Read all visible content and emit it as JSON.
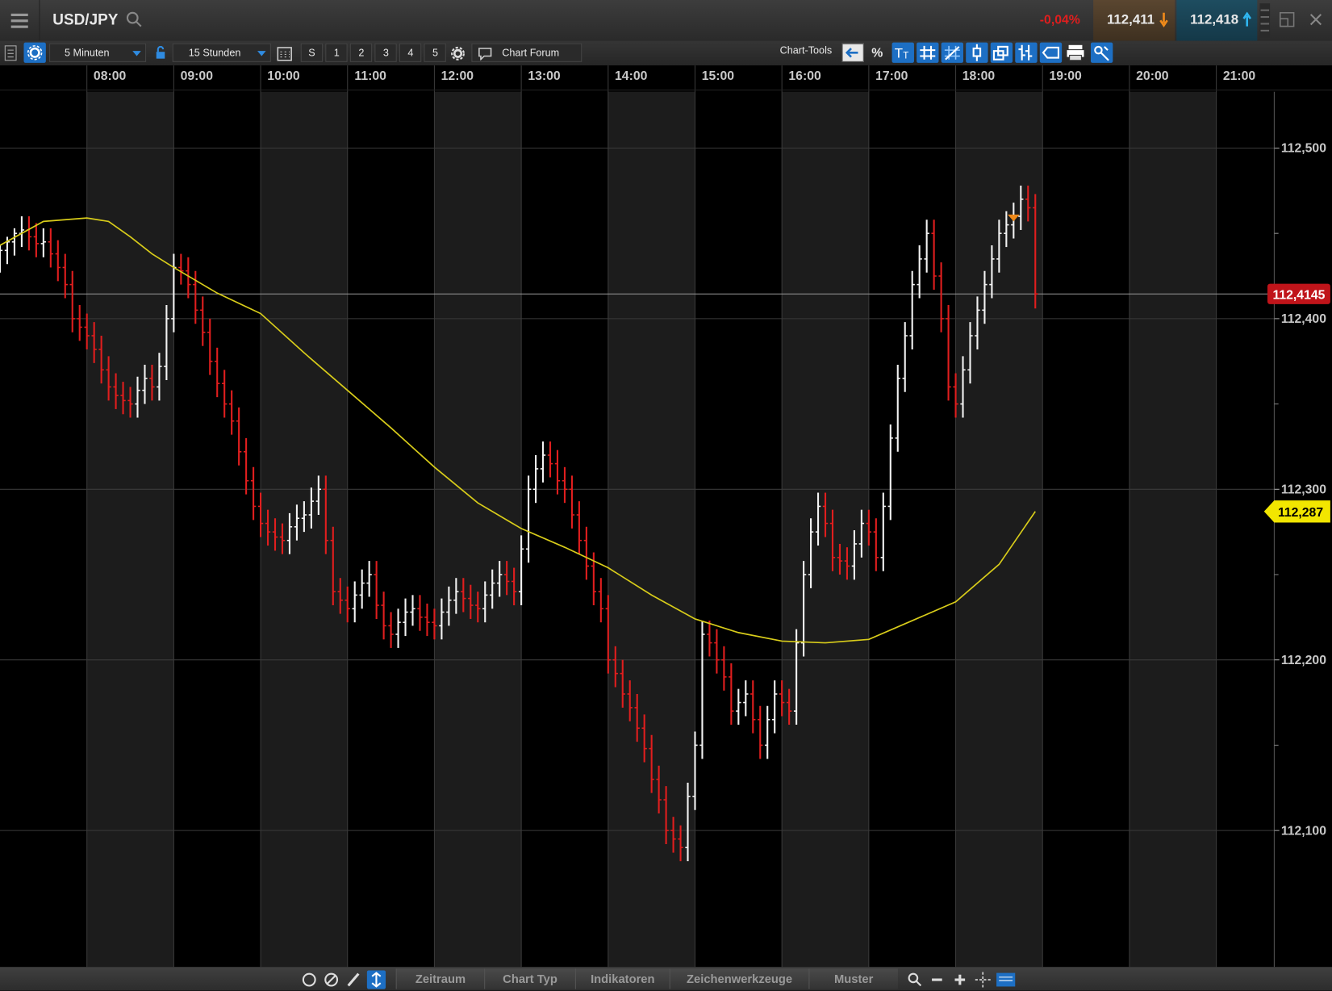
{
  "header": {
    "symbol": "USD/JPY",
    "change": "-0,04%",
    "sell": "112,411",
    "buy": "112,418"
  },
  "toolbar": {
    "interval": "5 Minuten",
    "range": "15 Stunden",
    "buttons": [
      "S",
      "1",
      "2",
      "3",
      "4",
      "5"
    ],
    "forum": "Chart Forum",
    "tools": "Chart-Tools",
    "percent": "%"
  },
  "bottom_bar": [
    "Zeitraum",
    "Chart Typ",
    "Indikatoren",
    "Zeichenwerkzeuge",
    "Muster"
  ],
  "chart": {
    "type": "ohlc",
    "up_color": "#f2f2f2",
    "down_color": "#e01e1e",
    "ma_color": "#d8cc1a",
    "grid": true,
    "x": [
      "07:00",
      "07:05",
      "07:10",
      "07:15",
      "07:20",
      "07:25",
      "07:30",
      "07:35",
      "07:40",
      "07:45",
      "07:50",
      "07:55",
      "08:00",
      "08:05",
      "08:10",
      "08:15",
      "08:20",
      "08:25",
      "08:30",
      "08:35",
      "08:40",
      "08:45",
      "08:50",
      "08:55",
      "09:00",
      "09:05",
      "09:10",
      "09:15",
      "09:20",
      "09:25",
      "09:30",
      "09:35",
      "09:40",
      "09:45",
      "09:50",
      "09:55",
      "10:00",
      "10:05",
      "10:10",
      "10:15",
      "10:20",
      "10:25",
      "10:30",
      "10:35",
      "10:40",
      "10:45",
      "10:50",
      "10:55",
      "11:00",
      "11:05",
      "11:10",
      "11:15",
      "11:20",
      "11:25",
      "11:30",
      "11:35",
      "11:40",
      "11:45",
      "11:50",
      "11:55",
      "12:00",
      "12:05",
      "12:10",
      "12:15",
      "12:20",
      "12:25",
      "12:30",
      "12:35",
      "12:40",
      "12:45",
      "12:50",
      "12:55",
      "13:00",
      "13:05",
      "13:10",
      "13:15",
      "13:20",
      "13:25",
      "13:30",
      "13:35",
      "13:40",
      "13:45",
      "13:50",
      "13:55",
      "14:00",
      "14:05",
      "14:10",
      "14:15",
      "14:20",
      "14:25",
      "14:30",
      "14:35",
      "14:40",
      "14:45",
      "14:50",
      "14:55",
      "15:00",
      "15:05",
      "15:10",
      "15:15",
      "15:20",
      "15:25",
      "15:30",
      "15:35",
      "15:40",
      "15:45",
      "15:50",
      "15:55",
      "16:00",
      "16:05",
      "16:10",
      "16:15",
      "16:20",
      "16:25",
      "16:30",
      "16:35",
      "16:40",
      "16:45",
      "16:50",
      "16:55",
      "17:00",
      "17:05",
      "17:10",
      "17:15",
      "17:20",
      "17:25",
      "17:30",
      "17:35",
      "17:40",
      "17:45",
      "17:50",
      "17:55",
      "18:00",
      "18:05",
      "18:10",
      "18:15",
      "18:20",
      "18:25",
      "18:30",
      "18:35",
      "18:40",
      "18:45",
      "18:50",
      "18:55"
    ],
    "open": [
      112.435,
      112.44,
      112.445,
      112.45,
      112.452,
      112.448,
      112.444,
      112.445,
      112.438,
      112.43,
      112.42,
      112.4,
      112.395,
      112.39,
      112.382,
      112.37,
      112.36,
      112.355,
      112.352,
      112.35,
      112.358,
      112.365,
      112.36,
      112.372,
      112.4,
      112.43,
      112.428,
      112.42,
      112.405,
      112.392,
      112.375,
      112.362,
      112.35,
      112.34,
      112.322,
      112.305,
      112.29,
      112.28,
      112.275,
      112.272,
      112.27,
      112.278,
      112.283,
      112.285,
      112.293,
      112.3,
      112.27,
      112.24,
      112.235,
      112.23,
      112.238,
      112.245,
      112.25,
      112.232,
      112.22,
      112.215,
      112.222,
      112.228,
      112.23,
      112.225,
      112.222,
      112.22,
      112.228,
      112.235,
      112.24,
      112.236,
      112.232,
      112.23,
      112.238,
      112.245,
      112.25,
      112.246,
      112.24,
      112.265,
      112.3,
      112.312,
      112.32,
      112.315,
      112.305,
      112.3,
      112.285,
      112.27,
      112.255,
      112.24,
      112.23,
      112.2,
      112.192,
      112.18,
      112.172,
      112.16,
      112.148,
      112.13,
      112.118,
      112.1,
      112.095,
      112.09,
      112.12,
      112.15,
      112.215,
      112.21,
      112.2,
      112.19,
      112.17,
      112.175,
      112.18,
      112.165,
      112.15,
      112.165,
      112.18,
      112.175,
      112.17,
      112.21,
      112.25,
      112.275,
      112.29,
      112.28,
      112.26,
      112.258,
      112.255,
      112.268,
      112.28,
      112.275,
      112.26,
      112.29,
      112.33,
      112.365,
      112.39,
      112.42,
      112.435,
      112.45,
      112.425,
      112.4,
      112.36,
      112.35,
      112.37,
      112.39,
      112.405,
      112.42,
      112.435,
      112.45,
      112.455,
      112.46,
      112.47,
      112.465
    ],
    "high": [
      112.443,
      112.448,
      112.453,
      112.46,
      112.46,
      112.456,
      112.453,
      112.453,
      112.446,
      112.438,
      112.428,
      112.408,
      112.403,
      112.398,
      112.39,
      112.378,
      112.368,
      112.363,
      112.36,
      112.366,
      112.373,
      112.373,
      112.38,
      112.408,
      112.438,
      112.438,
      112.436,
      112.428,
      112.413,
      112.4,
      112.383,
      112.37,
      112.358,
      112.348,
      112.33,
      112.313,
      112.298,
      112.288,
      112.283,
      112.28,
      112.286,
      112.291,
      112.293,
      112.301,
      112.308,
      112.308,
      112.278,
      112.248,
      112.243,
      112.246,
      112.253,
      112.258,
      112.258,
      112.24,
      112.228,
      112.23,
      112.236,
      112.238,
      112.238,
      112.233,
      112.23,
      112.236,
      112.243,
      112.248,
      112.248,
      112.244,
      112.24,
      112.246,
      112.253,
      112.258,
      112.258,
      112.254,
      112.273,
      112.308,
      112.32,
      112.328,
      112.328,
      112.323,
      112.313,
      112.308,
      112.293,
      112.278,
      112.263,
      112.248,
      112.238,
      112.208,
      112.2,
      112.188,
      112.18,
      112.168,
      112.156,
      112.138,
      112.126,
      112.108,
      112.103,
      112.128,
      112.158,
      112.223,
      112.223,
      112.218,
      112.208,
      112.198,
      112.183,
      112.188,
      112.188,
      112.173,
      112.173,
      112.188,
      112.188,
      112.183,
      112.218,
      112.258,
      112.283,
      112.298,
      112.298,
      112.288,
      112.268,
      112.266,
      112.276,
      112.288,
      112.288,
      112.283,
      112.298,
      112.338,
      112.373,
      112.398,
      112.428,
      112.443,
      112.458,
      112.458,
      112.433,
      112.408,
      112.368,
      112.378,
      112.398,
      112.413,
      112.428,
      112.443,
      112.458,
      112.463,
      112.468,
      112.478,
      112.478,
      112.473
    ],
    "low": [
      112.427,
      112.432,
      112.437,
      112.442,
      112.44,
      112.436,
      112.436,
      112.43,
      112.422,
      112.412,
      112.392,
      112.387,
      112.382,
      112.374,
      112.362,
      112.352,
      112.347,
      112.344,
      112.342,
      112.342,
      112.35,
      112.352,
      112.352,
      112.364,
      112.392,
      112.42,
      112.412,
      112.397,
      112.384,
      112.367,
      112.354,
      112.342,
      112.332,
      112.314,
      112.297,
      112.282,
      112.272,
      112.267,
      112.264,
      112.262,
      112.262,
      112.27,
      112.275,
      112.277,
      112.285,
      112.262,
      112.232,
      112.227,
      112.222,
      112.222,
      112.23,
      112.237,
      112.224,
      112.212,
      112.207,
      112.207,
      112.214,
      112.22,
      112.217,
      112.214,
      112.212,
      112.212,
      112.22,
      112.227,
      112.228,
      112.224,
      112.222,
      112.222,
      112.23,
      112.237,
      112.238,
      112.232,
      112.232,
      112.257,
      112.292,
      112.304,
      112.307,
      112.297,
      112.292,
      112.277,
      112.262,
      112.247,
      112.232,
      112.222,
      112.192,
      112.184,
      112.172,
      112.164,
      112.152,
      112.14,
      112.122,
      112.11,
      112.092,
      112.087,
      112.082,
      112.082,
      112.112,
      112.142,
      112.202,
      112.192,
      112.182,
      112.162,
      112.162,
      112.167,
      112.157,
      112.142,
      112.142,
      112.157,
      112.167,
      112.162,
      112.162,
      112.202,
      112.242,
      112.267,
      112.272,
      112.252,
      112.25,
      112.247,
      112.247,
      112.26,
      112.267,
      112.252,
      112.252,
      112.282,
      112.322,
      112.357,
      112.382,
      112.412,
      112.427,
      112.417,
      112.392,
      112.352,
      112.342,
      112.342,
      112.362,
      112.382,
      112.397,
      112.412,
      112.427,
      112.442,
      112.447,
      112.452,
      112.457,
      112.406
    ],
    "close": [
      112.44,
      112.445,
      112.45,
      112.452,
      112.448,
      112.444,
      112.445,
      112.438,
      112.43,
      112.42,
      112.4,
      112.395,
      112.39,
      112.382,
      112.37,
      112.36,
      112.355,
      112.352,
      112.35,
      112.358,
      112.365,
      112.36,
      112.372,
      112.4,
      112.43,
      112.428,
      112.42,
      112.405,
      112.392,
      112.375,
      112.362,
      112.35,
      112.34,
      112.322,
      112.305,
      112.29,
      112.28,
      112.275,
      112.272,
      112.27,
      112.278,
      112.283,
      112.285,
      112.293,
      112.3,
      112.27,
      112.24,
      112.235,
      112.23,
      112.238,
      112.245,
      112.25,
      112.232,
      112.22,
      112.215,
      112.222,
      112.228,
      112.23,
      112.225,
      112.222,
      112.22,
      112.228,
      112.235,
      112.24,
      112.236,
      112.232,
      112.23,
      112.238,
      112.245,
      112.25,
      112.246,
      112.24,
      112.265,
      112.3,
      112.312,
      112.32,
      112.315,
      112.305,
      112.3,
      112.285,
      112.27,
      112.255,
      112.24,
      112.23,
      112.2,
      112.192,
      112.18,
      112.172,
      112.16,
      112.148,
      112.13,
      112.118,
      112.1,
      112.095,
      112.09,
      112.12,
      112.15,
      112.215,
      112.21,
      112.2,
      112.19,
      112.17,
      112.175,
      112.18,
      112.165,
      112.15,
      112.165,
      112.18,
      112.175,
      112.17,
      112.21,
      112.25,
      112.275,
      112.29,
      112.28,
      112.26,
      112.258,
      112.255,
      112.268,
      112.28,
      112.275,
      112.26,
      112.29,
      112.33,
      112.365,
      112.39,
      112.42,
      112.435,
      112.45,
      112.425,
      112.4,
      112.36,
      112.35,
      112.37,
      112.39,
      112.405,
      112.42,
      112.435,
      112.45,
      112.455,
      112.46,
      112.47,
      112.465,
      112.4145
    ],
    "ma_x": [
      "07:00",
      "07:30",
      "08:00",
      "08:15",
      "08:30",
      "08:45",
      "09:00",
      "09:30",
      "10:00",
      "10:30",
      "11:00",
      "11:30",
      "12:00",
      "12:30",
      "13:00",
      "13:30",
      "14:00",
      "14:30",
      "15:00",
      "15:30",
      "16:00",
      "16:30",
      "17:00",
      "17:30",
      "18:00",
      "18:30",
      "18:55"
    ],
    "ma_values": [
      112.443,
      112.457,
      112.459,
      112.457,
      112.448,
      112.438,
      112.43,
      112.415,
      112.403,
      112.38,
      112.358,
      112.336,
      112.313,
      112.292,
      112.277,
      112.266,
      112.254,
      112.238,
      112.224,
      112.216,
      112.211,
      112.21,
      112.212,
      112.223,
      112.234,
      112.256,
      112.287
    ],
    "xlim": [
      "07:00",
      "21:40"
    ],
    "xticks": [
      "08:00",
      "09:00",
      "10:00",
      "11:00",
      "12:00",
      "13:00",
      "14:00",
      "15:00",
      "16:00",
      "17:00",
      "18:00",
      "19:00",
      "20:00",
      "21:00"
    ],
    "ylim": [
      112.02,
      112.533
    ],
    "yticks": [
      {
        "value": 112.1,
        "label": "112,100"
      },
      {
        "value": 112.2,
        "label": "112,200"
      },
      {
        "value": 112.3,
        "label": "112,300"
      },
      {
        "value": 112.4,
        "label": "112,400"
      },
      {
        "value": 112.5,
        "label": "112,500"
      }
    ],
    "minor_yticks": [
      112.15,
      112.25,
      112.35,
      112.45
    ],
    "last_price": {
      "value": 112.4145,
      "label": "112,4145"
    },
    "ma_last": {
      "value": 112.287,
      "label": "112,287"
    }
  }
}
